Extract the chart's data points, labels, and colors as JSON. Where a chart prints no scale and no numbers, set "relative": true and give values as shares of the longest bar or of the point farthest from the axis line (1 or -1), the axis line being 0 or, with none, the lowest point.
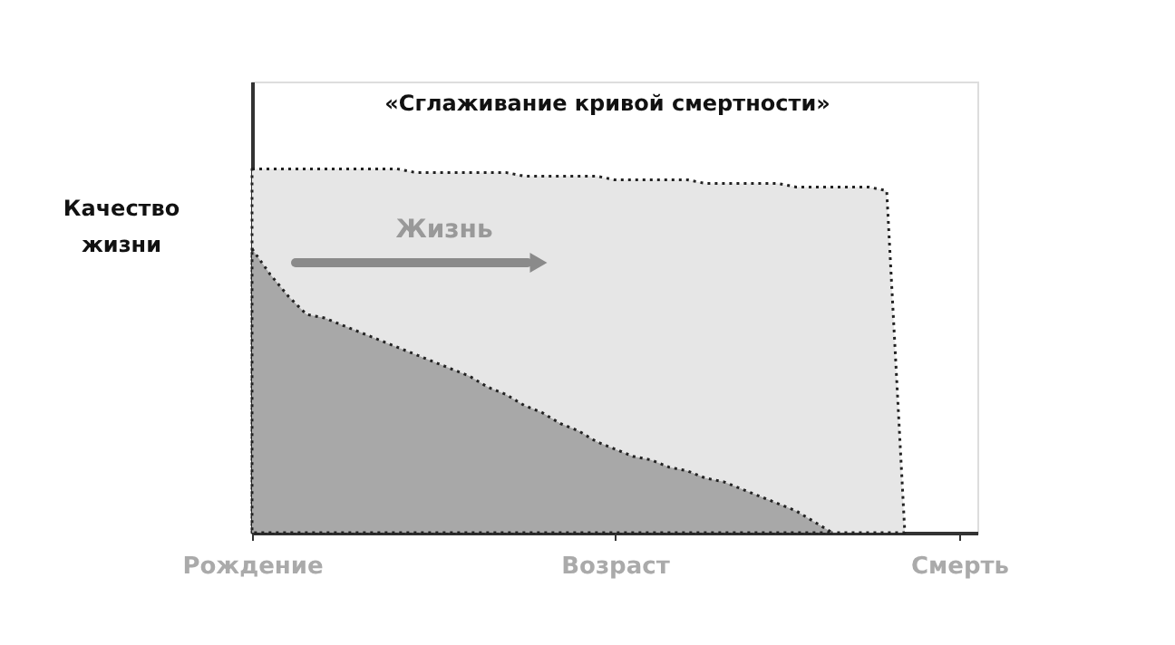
{
  "chart_data": {
    "type": "area",
    "title": "«Сглаживание кривой смертности»",
    "ylabel": "Качество жизни",
    "annotations": [
      "Жизнь"
    ],
    "relative": true,
    "line_style": "dotted",
    "categories": [
      "Рождение",
      null,
      null,
      null,
      null,
      null,
      null,
      null,
      null,
      null,
      null,
      null,
      null,
      null,
      null,
      null,
      null,
      null,
      null,
      null,
      "Возраст",
      null,
      null,
      null,
      null,
      null,
      null,
      null,
      null,
      null,
      null,
      null,
      null,
      null,
      null,
      null,
      null,
      null,
      null,
      "Смерть"
    ],
    "series": [
      {
        "color": "#e6e6e6",
        "values": [
          1.0,
          1.0,
          1.0,
          1.0,
          1.0,
          1.0,
          1.0,
          1.0,
          1.0,
          0.99,
          0.99,
          0.99,
          0.99,
          0.99,
          0.99,
          0.98,
          0.98,
          0.98,
          0.98,
          0.98,
          0.97,
          0.97,
          0.97,
          0.97,
          0.97,
          0.96,
          0.96,
          0.96,
          0.96,
          0.96,
          0.95,
          0.95,
          0.95,
          0.95,
          0.95,
          0.94,
          0,
          null,
          null,
          null
        ]
      },
      {
        "color": "#a8a8a8",
        "values": [
          0.78,
          0.71,
          0.65,
          0.6,
          0.59,
          0.57,
          0.55,
          0.53,
          0.51,
          0.49,
          0.47,
          0.45,
          0.43,
          0.4,
          0.38,
          0.35,
          0.33,
          0.3,
          0.28,
          0.25,
          0.23,
          0.21,
          0.2,
          0.18,
          0.17,
          0.15,
          0.14,
          0.12,
          0.1,
          0.08,
          0.06,
          0.03,
          0,
          null,
          null,
          null,
          null,
          null,
          null,
          null
        ]
      }
    ]
  }
}
